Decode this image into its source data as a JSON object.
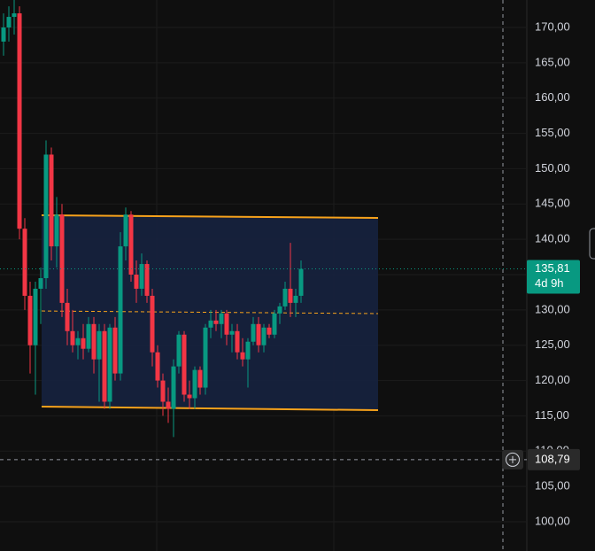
{
  "chart_data": {
    "type": "candlestick",
    "open": [
      168,
      170,
      171.5,
      172,
      141.5,
      132,
      125,
      133,
      134.5,
      152,
      139,
      143.5,
      131,
      127,
      125,
      126,
      124.5,
      128,
      123,
      127,
      117,
      127.5,
      121,
      139,
      143.5,
      135,
      133,
      136.5,
      132,
      124,
      120,
      117,
      116,
      122,
      126.5,
      118,
      117.5,
      121.5,
      119,
      127.5,
      128.5,
      128,
      129.5,
      126.5,
      127,
      124,
      123,
      125.5,
      128,
      125,
      127.5,
      126.5,
      129.5,
      130.5,
      133,
      131,
      132
    ],
    "high": [
      172,
      173,
      174,
      173,
      143,
      134,
      134,
      136,
      154,
      153,
      146,
      145,
      133,
      130,
      127,
      128,
      129,
      129,
      128,
      128,
      128,
      129,
      141,
      144.5,
      144,
      137,
      138,
      137,
      133,
      125,
      121,
      119,
      123,
      127,
      127,
      120,
      122,
      122,
      128,
      130,
      130,
      130,
      130,
      128,
      128,
      126,
      126,
      129,
      129,
      128,
      128,
      130,
      131,
      134,
      139.5,
      133,
      137
    ],
    "low": [
      166,
      168,
      169,
      140,
      130,
      121,
      118,
      128,
      133,
      137,
      136,
      129,
      125,
      124,
      123,
      123,
      124,
      121,
      117,
      116,
      116,
      120,
      120,
      137,
      134,
      131,
      132,
      131,
      122,
      119,
      115,
      114,
      112,
      121,
      117,
      116,
      116,
      118,
      118,
      126,
      127,
      126,
      125,
      124,
      123,
      122,
      119,
      125,
      124,
      124,
      126,
      126,
      128,
      130,
      129,
      129,
      131
    ],
    "close": [
      170,
      171.5,
      172,
      141.5,
      132,
      125,
      133,
      134.5,
      152,
      139,
      143.5,
      131,
      127,
      125,
      126,
      124.5,
      128,
      123,
      127,
      117,
      127.5,
      121,
      139,
      143.5,
      135,
      133,
      136.5,
      132,
      124,
      120,
      117,
      116,
      122,
      126.5,
      118,
      117.5,
      121.5,
      119,
      127.5,
      128.5,
      128,
      129.5,
      126.5,
      127,
      124,
      123,
      125.5,
      128,
      125,
      127.5,
      126.5,
      129.5,
      130.5,
      133,
      131,
      132,
      135.81
    ],
    "up_color": "#089981",
    "down_color": "#f23645",
    "ylim": [
      95.86,
      173.89
    ],
    "yticks": [
      {
        "value": 100,
        "label": "100,00"
      },
      {
        "value": 105,
        "label": "105,00"
      },
      {
        "value": 110,
        "label": "110,00"
      },
      {
        "value": 115,
        "label": "115,00"
      },
      {
        "value": 120,
        "label": "120,00"
      },
      {
        "value": 125,
        "label": "125,00"
      },
      {
        "value": 130,
        "label": "130,00"
      },
      {
        "value": 135,
        "label": "135,00"
      },
      {
        "value": 140,
        "label": "140,00"
      },
      {
        "value": 145,
        "label": "145,00"
      },
      {
        "value": 150,
        "label": "150,00"
      },
      {
        "value": 155,
        "label": "155,00"
      },
      {
        "value": 160,
        "label": "160,00"
      },
      {
        "value": 165,
        "label": "165,00"
      },
      {
        "value": 170,
        "label": "170,00"
      }
    ],
    "grid": true,
    "channel": {
      "top": [
        143.4,
        143.03
      ],
      "bottom": [
        116.31,
        115.8
      ],
      "middle": [
        129.85,
        129.48
      ],
      "color": "#f7a21b",
      "fill": "#16223f"
    },
    "current_price": {
      "value": 135.81,
      "label": "135,81",
      "countdown": "4d 9h",
      "color": "#089981"
    },
    "crosshair": {
      "value": 108.79,
      "label": "108,79"
    }
  }
}
